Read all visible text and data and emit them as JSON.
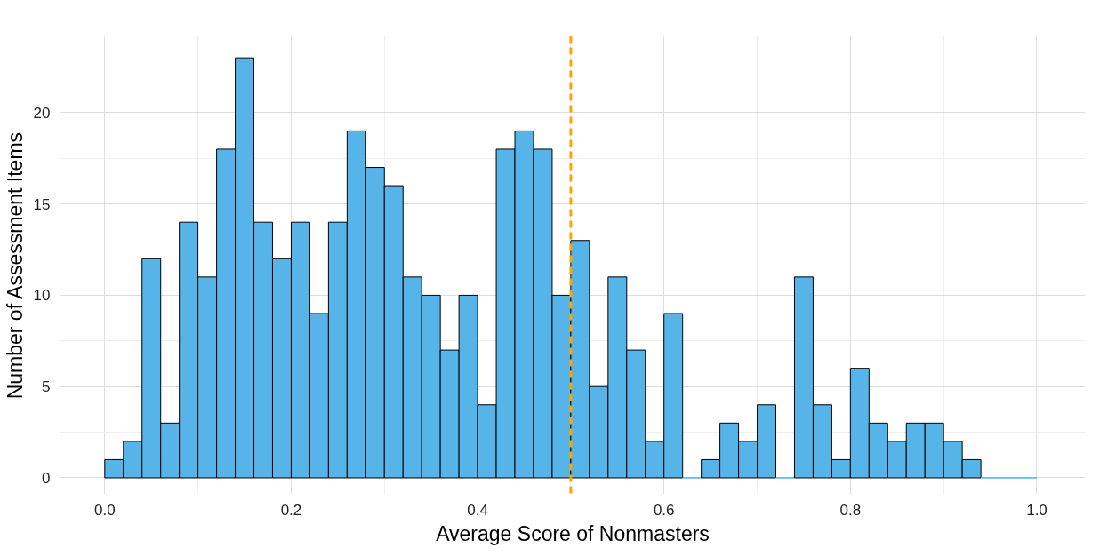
{
  "chart_data": {
    "type": "histogram",
    "xlabel": "Average Score of Nonmasters",
    "ylabel": "Number of Assessment Items",
    "bins": [
      0.0,
      0.02,
      0.04,
      0.06,
      0.08,
      0.1,
      0.12,
      0.14,
      0.16,
      0.18,
      0.2,
      0.22,
      0.24,
      0.26,
      0.28,
      0.3,
      0.32,
      0.34,
      0.36,
      0.38,
      0.4,
      0.42,
      0.44,
      0.46,
      0.48,
      0.5,
      0.52,
      0.54,
      0.56,
      0.58,
      0.6,
      0.62,
      0.64,
      0.66,
      0.68,
      0.7,
      0.72,
      0.74,
      0.76,
      0.78,
      0.8,
      0.82,
      0.84,
      0.86,
      0.88,
      0.9,
      0.92,
      0.94,
      0.96,
      0.98,
      1.0
    ],
    "values": [
      1,
      2,
      12,
      3,
      14,
      11,
      18,
      23,
      14,
      12,
      14,
      9,
      14,
      19,
      17,
      16,
      11,
      10,
      7,
      10,
      4,
      18,
      19,
      18,
      10,
      13,
      5,
      11,
      7,
      2,
      9,
      0,
      1,
      3,
      2,
      4,
      0,
      11,
      4,
      1,
      6,
      3,
      2,
      3,
      3,
      2,
      1,
      0,
      0,
      0
    ],
    "color": "#56b4e9",
    "xlim": [
      -0.048,
      1.052
    ],
    "ylim": [
      -0.9,
      24.2
    ],
    "xticks": [
      {
        "value": 0,
        "label": "0.0"
      },
      {
        "value": 0.2,
        "label": "0.2"
      },
      {
        "value": 0.4,
        "label": "0.4"
      },
      {
        "value": 0.6,
        "label": "0.6"
      },
      {
        "value": 0.8,
        "label": "0.8"
      },
      {
        "value": 1,
        "label": "1.0"
      }
    ],
    "yticks": [
      0,
      5,
      10,
      15,
      20
    ],
    "grid": true,
    "ref_lines": [
      {
        "axis": "x",
        "value": 0.5,
        "color": "#ffa500",
        "line_style": "dashed"
      }
    ]
  }
}
